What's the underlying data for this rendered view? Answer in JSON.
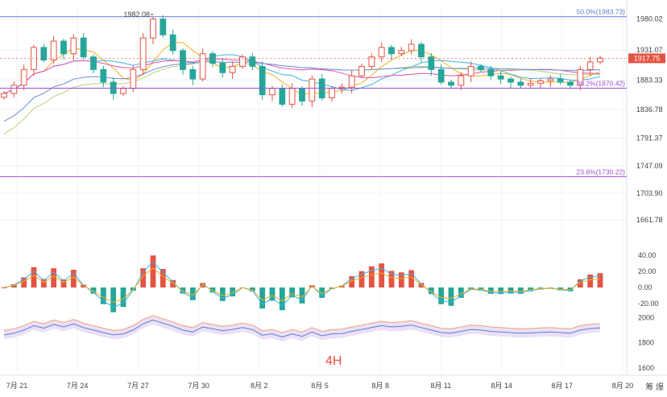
{
  "timeframe_label": "4H",
  "corner_label": "筹 爆",
  "price_tag": "1917.75",
  "colors": {
    "bull": "#e55342",
    "bear": "#26a69a",
    "fib_blue": "#5b7fd1",
    "fib_purple": "#9c4fd6",
    "price_tag_bg": "#e55342"
  },
  "chart_data": [
    {
      "type": "candlestick",
      "title": "",
      "y_ticks": [
        "1980.02",
        "1931.07",
        "1883.33",
        "1836.78",
        "1791.37",
        "1747.09",
        "1703.90",
        "1661.78"
      ],
      "x_ticks": [
        "7月 21",
        "7月 24",
        "7月 27",
        "7月 30",
        "8月 2",
        "8月 5",
        "8月 8",
        "8月 11",
        "8月 14",
        "8月 17",
        "8月 20"
      ],
      "ylim": [
        1640,
        2000
      ],
      "last_price": 1917.75,
      "high_annotation": "1982.08",
      "fib_levels": [
        {
          "label": "50.0%(1983.73)",
          "value": 1983.73
        },
        {
          "label": "38.2%(1870.42)",
          "value": 1870.42
        },
        {
          "label": "23.6%(1730.22)",
          "value": 1730.22
        }
      ],
      "close_path": [
        1862,
        1875,
        1900,
        1935,
        1915,
        1945,
        1925,
        1950,
        1920,
        1900,
        1880,
        1862,
        1870,
        1900,
        1950,
        1980,
        1955,
        1930,
        1900,
        1885,
        1925,
        1910,
        1895,
        1905,
        1920,
        1905,
        1860,
        1870,
        1845,
        1870,
        1850,
        1885,
        1855,
        1870,
        1872,
        1890,
        1905,
        1920,
        1935,
        1925,
        1930,
        1940,
        1920,
        1900,
        1880,
        1875,
        1890,
        1905,
        1900,
        1890,
        1885,
        1880,
        1875,
        1878,
        1882,
        1885,
        1880,
        1875,
        1900,
        1912,
        1918
      ],
      "ma_series": [
        {
          "color": "#f2b01e"
        },
        {
          "color": "#3bb3e0"
        },
        {
          "color": "#e04fb0"
        },
        {
          "color": "#b8d27a"
        },
        {
          "color": "#6c8fd6"
        }
      ]
    },
    {
      "type": "bar",
      "indicator": "MACD",
      "y_ticks": [
        "40.00",
        "20.00",
        "0.00",
        "-20.00"
      ],
      "ylim": [
        -25,
        45
      ]
    },
    {
      "type": "line",
      "indicator": "BOLL",
      "y_ticks": [
        "2000",
        "1800",
        "1600"
      ],
      "ylim": [
        1580,
        2040
      ]
    }
  ]
}
